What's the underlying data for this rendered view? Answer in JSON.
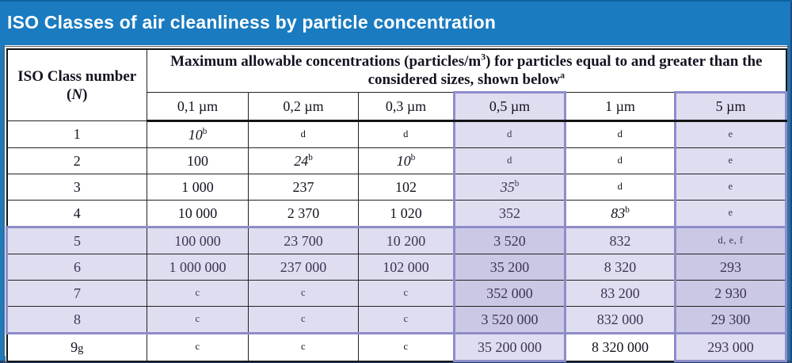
{
  "title": "ISO Classes of air cleanliness by particle concentration",
  "colors": {
    "title_bar_blue": "#1a7bc0",
    "highlight_fill": "#dfddf0",
    "highlight_fill_intersection": "#cbc8e5",
    "highlight_border_purple": "#8e8dc9",
    "table_border_black": "#161616"
  },
  "table": {
    "corner_header": {
      "line1": "ISO Class number",
      "line2_prefix": "(",
      "line2_symbol": "N",
      "line2_suffix": ")"
    },
    "main_header": {
      "part1": "Maximum allowable concentrations (particles/m",
      "sup1": "3",
      "part2": ") for particles equal to and greater than the considered sizes, shown below",
      "sup2": "a"
    },
    "size_headers": [
      "0,1 µm",
      "0,2 µm",
      "0,3 µm",
      "0,5 µm",
      "1 µm",
      "5 µm"
    ],
    "highlight_cols": [
      3,
      5
    ],
    "highlight_rows": [
      4,
      5,
      6,
      7
    ],
    "rows": [
      {
        "class": "1",
        "class_note": "",
        "cells": [
          {
            "v": "10",
            "i": 1,
            "sup": "b"
          },
          {
            "n": "d"
          },
          {
            "n": "d"
          },
          {
            "n": "d"
          },
          {
            "n": "d"
          },
          {
            "n": "e"
          }
        ]
      },
      {
        "class": "2",
        "class_note": "",
        "cells": [
          {
            "v": "100"
          },
          {
            "v": "24",
            "i": 1,
            "sup": "b"
          },
          {
            "v": "10",
            "i": 1,
            "sup": "b"
          },
          {
            "n": "d"
          },
          {
            "n": "d"
          },
          {
            "n": "e"
          }
        ]
      },
      {
        "class": "3",
        "class_note": "",
        "cells": [
          {
            "v": "1 000"
          },
          {
            "v": "237"
          },
          {
            "v": "102"
          },
          {
            "v": "35",
            "i": 1,
            "sup": "b"
          },
          {
            "n": "d"
          },
          {
            "n": "e"
          }
        ]
      },
      {
        "class": "4",
        "class_note": "",
        "cells": [
          {
            "v": "10 000"
          },
          {
            "v": "2 370"
          },
          {
            "v": "1 020"
          },
          {
            "v": "352"
          },
          {
            "v": "83",
            "i": 1,
            "sup": "b"
          },
          {
            "n": "e"
          }
        ]
      },
      {
        "class": "5",
        "class_note": "",
        "cells": [
          {
            "v": "100 000"
          },
          {
            "v": "23 700"
          },
          {
            "v": "10 200"
          },
          {
            "v": "3 520"
          },
          {
            "v": "832"
          },
          {
            "n": "d, e, f"
          }
        ]
      },
      {
        "class": "6",
        "class_note": "",
        "cells": [
          {
            "v": "1 000 000"
          },
          {
            "v": "237 000"
          },
          {
            "v": "102 000"
          },
          {
            "v": "35 200"
          },
          {
            "v": "8 320"
          },
          {
            "v": "293"
          }
        ]
      },
      {
        "class": "7",
        "class_note": "",
        "cells": [
          {
            "n": "c"
          },
          {
            "n": "c"
          },
          {
            "n": "c"
          },
          {
            "v": "352 000"
          },
          {
            "v": "83 200"
          },
          {
            "v": "2 930"
          }
        ]
      },
      {
        "class": "8",
        "class_note": "",
        "cells": [
          {
            "n": "c"
          },
          {
            "n": "c"
          },
          {
            "n": "c"
          },
          {
            "v": "3 520 000"
          },
          {
            "v": "832 000"
          },
          {
            "v": "29 300"
          }
        ]
      },
      {
        "class": "9",
        "class_note": "g",
        "cells": [
          {
            "n": "c"
          },
          {
            "n": "c"
          },
          {
            "n": "c"
          },
          {
            "v": "35 200 000"
          },
          {
            "v": "8 320 000"
          },
          {
            "v": "293 000"
          }
        ]
      }
    ]
  }
}
